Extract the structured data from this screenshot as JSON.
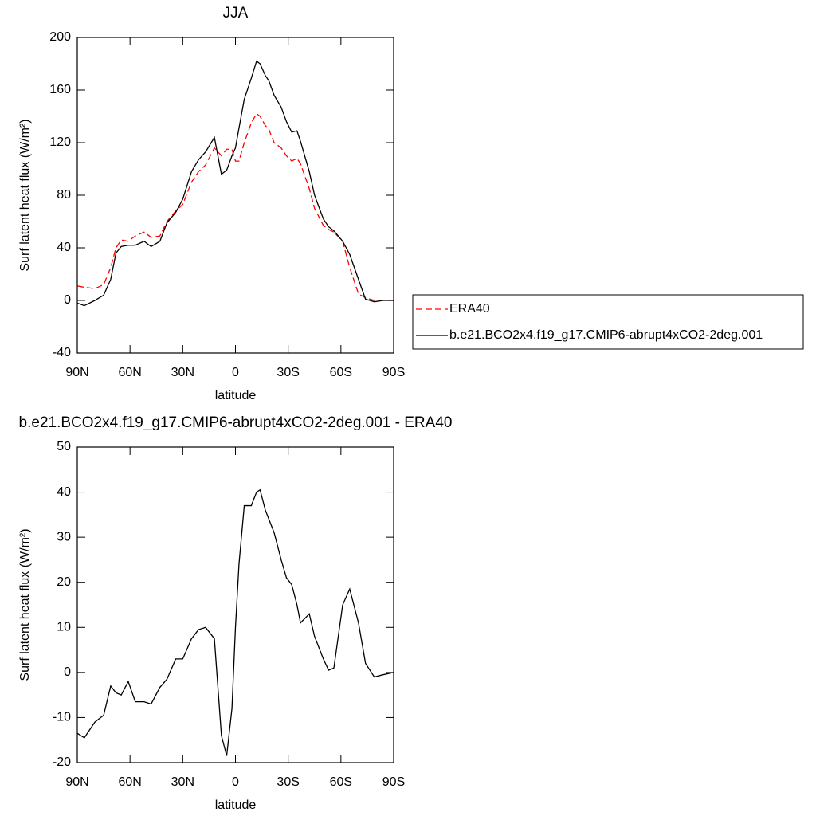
{
  "chart_data": [
    {
      "type": "line",
      "title": "JJA",
      "xlabel": "latitude",
      "ylabel": "Surf latent heat flux (W/m²)",
      "x": [
        90,
        86,
        80,
        75,
        71,
        68,
        65,
        61,
        57,
        52,
        48,
        43,
        39,
        34,
        30,
        25,
        21,
        17,
        12,
        8,
        5,
        2,
        0,
        -2,
        -5,
        -9,
        -12,
        -14,
        -17,
        -19,
        -22,
        -26,
        -29,
        -32,
        -35,
        -37,
        -42,
        -45,
        -50,
        -53,
        -56,
        -61,
        -65,
        -70,
        -74,
        -79,
        -84,
        -90
      ],
      "series": [
        {
          "name": "ERA40",
          "color": "#ff0000",
          "dash": true,
          "values": [
            11,
            10,
            9,
            12,
            25,
            40,
            46,
            45,
            49,
            52,
            48,
            49,
            60,
            68,
            73,
            90,
            98,
            103,
            116,
            110,
            115,
            115,
            106,
            106,
            120,
            135,
            142,
            140,
            133,
            130,
            120,
            116,
            110,
            106,
            108,
            104,
            85,
            70,
            57,
            54,
            52,
            45,
            25,
            5,
            2,
            0,
            0,
            0
          ]
        },
        {
          "name": "b.e21.BCO2x4.f19_g17.CMIP6-abrupt4xCO2-2deg.001",
          "color": "#000000",
          "dash": false,
          "values": [
            -2,
            -4,
            0,
            4,
            16,
            36,
            41,
            42,
            42,
            45,
            41,
            45,
            59,
            67,
            77,
            98,
            107,
            113,
            124,
            96,
            99,
            110,
            116,
            131,
            153,
            169,
            182,
            180,
            171,
            167,
            156,
            147,
            136,
            128,
            129,
            121,
            98,
            80,
            62,
            56,
            53,
            45,
            35,
            16,
            1,
            -1,
            0,
            0
          ]
        }
      ],
      "xlim": [
        90,
        -90
      ],
      "xticks": [
        {
          "value": 90,
          "label": "90N"
        },
        {
          "value": 60,
          "label": "60N"
        },
        {
          "value": 30,
          "label": "30N"
        },
        0,
        {
          "value": -30,
          "label": "30S"
        },
        {
          "value": -60,
          "label": "60S"
        },
        {
          "value": -90,
          "label": "90S"
        }
      ],
      "ylim": [
        -40,
        200
      ],
      "yticks": [
        -40,
        0,
        40,
        80,
        120,
        160,
        200
      ],
      "legend": "right"
    },
    {
      "type": "line",
      "title": "b.e21.BCO2x4.f19_g17.CMIP6-abrupt4xCO2-2deg.001 - ERA40",
      "xlabel": "latitude",
      "ylabel": "Surf latent heat flux (W/m²)",
      "x": [
        90,
        86,
        80,
        75,
        71,
        68,
        65,
        61,
        57,
        52,
        48,
        43,
        39,
        34,
        30,
        25,
        21,
        17,
        12,
        8,
        5,
        2,
        0,
        -2,
        -5,
        -9,
        -12,
        -14,
        -17,
        -19,
        -22,
        -26,
        -29,
        -32,
        -35,
        -37,
        -42,
        -45,
        -50,
        -53,
        -56,
        -61,
        -65,
        -70,
        -74,
        -79,
        -84,
        -90
      ],
      "series": [
        {
          "color": "#000000",
          "dash": false,
          "values": [
            -13.5,
            -14.5,
            -11,
            -9.5,
            -3,
            -4.5,
            -5,
            -2,
            -6.5,
            -6.5,
            -7,
            -3.3,
            -1.5,
            3,
            3,
            7.5,
            9.5,
            10,
            7.5,
            -14,
            -18.5,
            -8,
            10,
            24,
            37,
            37,
            40,
            40.5,
            36,
            34,
            31,
            25,
            21,
            19.5,
            15,
            11,
            13,
            8,
            3,
            0.5,
            1,
            15,
            18.5,
            11,
            2,
            -1,
            -0.5,
            0
          ]
        }
      ],
      "xlim": [
        90,
        -90
      ],
      "xticks": [
        {
          "value": 90,
          "label": "90N"
        },
        {
          "value": 60,
          "label": "60N"
        },
        {
          "value": 30,
          "label": "30N"
        },
        0,
        {
          "value": -30,
          "label": "30S"
        },
        {
          "value": -60,
          "label": "60S"
        },
        {
          "value": -90,
          "label": "90S"
        }
      ],
      "ylim": [
        -20,
        50
      ],
      "yticks": [
        -20,
        -10,
        0,
        10,
        20,
        30,
        40,
        50
      ]
    }
  ]
}
